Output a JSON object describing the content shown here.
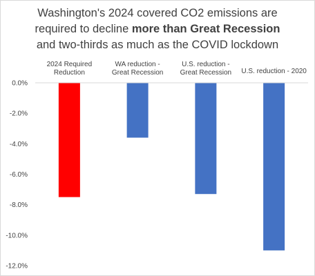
{
  "chart_data": {
    "type": "bar",
    "title": {
      "line1": "Washington's 2024 covered CO2 emissions are",
      "line2_pre": "required to decline ",
      "line2_bold": "more than Great Recession",
      "line3": "and two-thirds as much as the COVID lockdown"
    },
    "categories": [
      [
        "2024 Required",
        "Reduction"
      ],
      [
        "WA reduction -",
        "Great Recession"
      ],
      [
        "U.S. reduction -",
        "Great Recession"
      ],
      [
        "U.S. reduction - 2020"
      ]
    ],
    "values": [
      -7.5,
      -3.6,
      -7.3,
      -11.0
    ],
    "colors": [
      "#ff0000",
      "#4472c4",
      "#4472c4",
      "#4472c4"
    ],
    "ylim": [
      -12,
      0
    ],
    "yticks": [
      0,
      -2,
      -4,
      -6,
      -8,
      -10,
      -12
    ],
    "ytick_labels": [
      "0.0%",
      "-2.0%",
      "-4.0%",
      "-6.0%",
      "-8.0%",
      "-10.0%",
      "-12.0%"
    ],
    "grid": false,
    "xlabel": "",
    "ylabel": ""
  }
}
